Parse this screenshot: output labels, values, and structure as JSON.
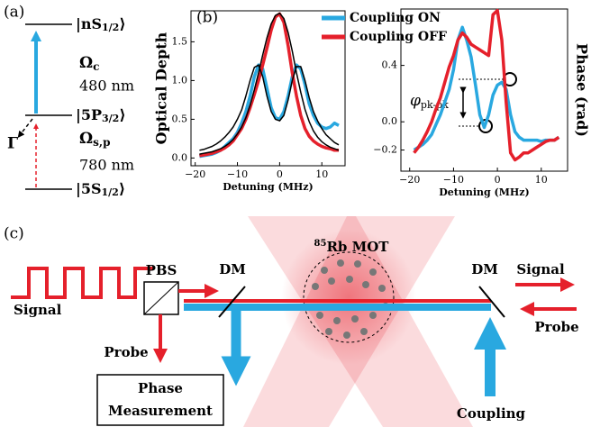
{
  "panel_labels": [
    "(a)",
    "(b)",
    "(c)"
  ],
  "level_diagram": {
    "levels": [
      {
        "label": "|nS",
        "sub": "1/2",
        "end": "⟩"
      },
      {
        "label": "|5P",
        "sub": "3/2",
        "end": "⟩"
      },
      {
        "label": "|5S",
        "sub": "1/2",
        "end": "⟩"
      }
    ],
    "coupling": {
      "symbol": "Ω",
      "sub": "c",
      "wavelength": "480 nm"
    },
    "probe": {
      "symbol": "Ω",
      "sub": "s,p",
      "wavelength": "780 nm"
    },
    "decay": "Γ"
  },
  "chart_data": [
    {
      "type": "line",
      "xlabel": "Detuning (MHz)",
      "ylabel": "Optical Depth",
      "x": [
        -19,
        -18,
        -17,
        -16,
        -15,
        -14,
        -13,
        -12,
        -11,
        -10,
        -9,
        -8,
        -7,
        -6,
        -5,
        -4,
        -3,
        -2,
        -1,
        0,
        1,
        2,
        3,
        4,
        5,
        6,
        7,
        8,
        9,
        10,
        11,
        12,
        13,
        14
      ],
      "series": [
        {
          "name": "Coupling ON",
          "color": "#29a8e0",
          "values": [
            0.02,
            0.03,
            0.04,
            0.05,
            0.07,
            0.1,
            0.15,
            0.2,
            0.25,
            0.33,
            0.45,
            0.6,
            0.8,
            1.05,
            1.2,
            1.15,
            0.9,
            0.65,
            0.52,
            0.5,
            0.6,
            0.8,
            1.05,
            1.2,
            1.15,
            0.95,
            0.7,
            0.55,
            0.45,
            0.4,
            0.38,
            0.4,
            0.45,
            0.42
          ]
        },
        {
          "name": "Coupling OFF",
          "color": "#e5202b",
          "values": [
            0.03,
            0.04,
            0.05,
            0.06,
            0.08,
            0.1,
            0.13,
            0.17,
            0.22,
            0.3,
            0.38,
            0.5,
            0.65,
            0.82,
            1.0,
            1.2,
            1.42,
            1.65,
            1.82,
            1.86,
            1.75,
            1.45,
            1.1,
            0.8,
            0.55,
            0.38,
            0.28,
            0.22,
            0.18,
            0.15,
            0.13,
            0.12,
            0.1,
            0.1
          ]
        },
        {
          "color": "#000000",
          "values": [
            0.1,
            0.11,
            0.13,
            0.15,
            0.18,
            0.22,
            0.27,
            0.33,
            0.4,
            0.5,
            0.62,
            0.8,
            1.0,
            1.17,
            1.2,
            1.05,
            0.8,
            0.6,
            0.5,
            0.48,
            0.55,
            0.75,
            1.0,
            1.18,
            1.18,
            1.0,
            0.78,
            0.6,
            0.48,
            0.38,
            0.3,
            0.25,
            0.2,
            0.17
          ]
        },
        {
          "color": "#000000",
          "values": [
            0.05,
            0.06,
            0.07,
            0.08,
            0.1,
            0.12,
            0.15,
            0.19,
            0.24,
            0.31,
            0.4,
            0.52,
            0.68,
            0.88,
            1.1,
            1.33,
            1.55,
            1.73,
            1.84,
            1.87,
            1.8,
            1.62,
            1.38,
            1.1,
            0.85,
            0.63,
            0.47,
            0.35,
            0.27,
            0.21,
            0.17,
            0.14,
            0.12,
            0.1
          ]
        }
      ],
      "xlim": [
        -21,
        15.5
      ],
      "ylim": [
        -0.1,
        1.9
      ],
      "xticks": [
        {
          "value": -20,
          "label": "−20"
        },
        {
          "value": -10,
          "label": "−10"
        },
        0,
        10
      ],
      "yticks": [
        {
          "value": 0,
          "label": "0.0"
        },
        0.5,
        {
          "value": 1,
          "label": "1.0"
        },
        1.5
      ],
      "legend": "upper right"
    },
    {
      "type": "line",
      "xlabel": "Detuning (MHz)",
      "ylabel": "Phase (rad)",
      "annotation": {
        "symbol": "φ",
        "sub": "pk-pk"
      },
      "x": [
        -19,
        -18,
        -17,
        -16,
        -15,
        -14,
        -13,
        -12,
        -11,
        -10,
        -9,
        -8,
        -7,
        -6,
        -5,
        -4,
        -3,
        -2,
        -1,
        0,
        1,
        2,
        3,
        4,
        5,
        6,
        7,
        8,
        9,
        10,
        11,
        12,
        13,
        14
      ],
      "series": [
        {
          "name": "Coupling ON",
          "color": "#29a8e0",
          "values": [
            -0.2,
            -0.18,
            -0.16,
            -0.13,
            -0.09,
            -0.02,
            0.05,
            0.14,
            0.23,
            0.37,
            0.58,
            0.67,
            0.58,
            0.46,
            0.26,
            0.05,
            -0.04,
            0.05,
            0.19,
            0.26,
            0.28,
            0.23,
            0.05,
            -0.07,
            -0.11,
            -0.13,
            -0.13,
            -0.13,
            -0.13,
            -0.14,
            -0.13,
            -0.13,
            -0.13,
            -0.11
          ]
        },
        {
          "name": "Coupling OFF",
          "color": "#e5202b",
          "values": [
            -0.22,
            -0.18,
            -0.13,
            -0.07,
            0.0,
            0.09,
            0.17,
            0.28,
            0.39,
            0.47,
            0.58,
            0.63,
            0.6,
            0.55,
            0.53,
            0.51,
            0.49,
            0.47,
            0.76,
            0.79,
            0.58,
            0.14,
            -0.22,
            -0.27,
            -0.25,
            -0.22,
            -0.22,
            -0.2,
            -0.18,
            -0.16,
            -0.14,
            -0.13,
            -0.13,
            -0.11
          ]
        }
      ],
      "xlim": [
        -22,
        16
      ],
      "ylim": [
        -0.35,
        0.8
      ],
      "xticks": [
        {
          "value": -20,
          "label": "−20"
        },
        {
          "value": -10,
          "label": "−10"
        },
        0,
        10
      ],
      "yticks": [
        {
          "value": -0.2,
          "label": "−0.2"
        },
        {
          "value": 0,
          "label": "0.0"
        },
        0.4
      ]
    }
  ],
  "setup": {
    "signal_in": "Signal",
    "pbs": "PBS",
    "dm_left": "DM",
    "dm_right": "DM",
    "mot": {
      "isotope": "85",
      "label": "Rb MOT"
    },
    "signal_out": "Signal",
    "probe_out": "Probe",
    "probe_split": "Probe",
    "phase_box": [
      "Phase",
      "Measurement"
    ],
    "coupling": "Coupling"
  }
}
